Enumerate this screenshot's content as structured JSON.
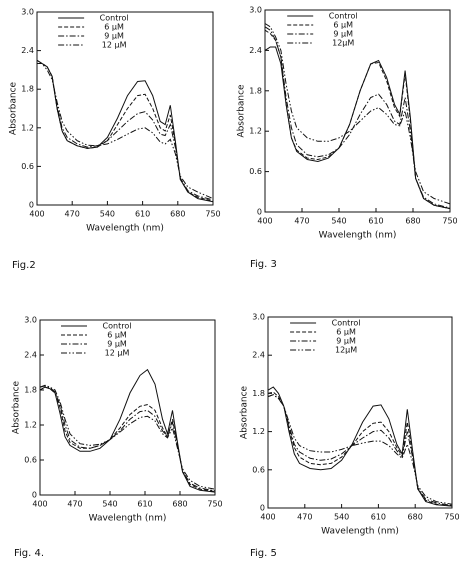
{
  "chart_data": [
    {
      "type": "line",
      "caption": "Fig.2",
      "xlabel": "Wavelength (nm)",
      "ylabel": "Absorbance",
      "x": [
        400,
        410,
        420,
        430,
        440,
        450,
        460,
        480,
        500,
        520,
        540,
        560,
        580,
        600,
        615,
        630,
        645,
        655,
        665,
        675,
        685,
        700,
        720,
        750
      ],
      "xlim": [
        400,
        750
      ],
      "ylim": [
        0,
        3
      ],
      "xticks": [
        400,
        470,
        540,
        610,
        680,
        750
      ],
      "yticks": [
        0,
        0.6,
        1.2,
        1.8,
        2.4,
        {
          "value": 3,
          "label": "3.0"
        }
      ],
      "series": [
        {
          "name": "Control",
          "color": "#111",
          "dash": "solid",
          "values": [
            2.2,
            2.2,
            2.15,
            2.0,
            1.5,
            1.15,
            1.0,
            0.92,
            0.88,
            0.9,
            1.05,
            1.35,
            1.7,
            1.92,
            1.93,
            1.7,
            1.3,
            1.25,
            1.55,
            1.0,
            0.4,
            0.2,
            0.1,
            0.05
          ]
        },
        {
          "name": "6 μM",
          "color": "#111",
          "dash": "dashed",
          "values": [
            2.2,
            2.2,
            2.15,
            2.0,
            1.5,
            1.15,
            1.0,
            0.92,
            0.88,
            0.9,
            1.0,
            1.25,
            1.5,
            1.7,
            1.72,
            1.5,
            1.2,
            1.15,
            1.4,
            0.95,
            0.4,
            0.2,
            0.12,
            0.06
          ]
        },
        {
          "name": "9 μM",
          "color": "#111",
          "dash": "dashdot",
          "values": [
            2.25,
            2.2,
            2.15,
            2.0,
            1.55,
            1.2,
            1.05,
            0.95,
            0.9,
            0.92,
            1.0,
            1.15,
            1.3,
            1.42,
            1.45,
            1.32,
            1.1,
            1.08,
            1.25,
            0.9,
            0.42,
            0.22,
            0.14,
            0.08
          ]
        },
        {
          "name": "12 μM",
          "color": "#111",
          "dash": "dashdotdot",
          "values": [
            2.25,
            2.2,
            2.1,
            1.95,
            1.6,
            1.3,
            1.15,
            1.0,
            0.93,
            0.92,
            0.95,
            1.02,
            1.1,
            1.18,
            1.2,
            1.12,
            0.98,
            0.95,
            1.02,
            0.8,
            0.45,
            0.28,
            0.2,
            0.1
          ]
        }
      ]
    },
    {
      "type": "line",
      "caption": "Fig. 3",
      "xlabel": "Wavelength (nm)",
      "ylabel": "Absorbance",
      "x": [
        400,
        410,
        420,
        430,
        440,
        450,
        460,
        480,
        500,
        520,
        540,
        560,
        580,
        600,
        615,
        630,
        645,
        655,
        665,
        675,
        685,
        700,
        720,
        750
      ],
      "xlim": [
        400,
        750
      ],
      "ylim": [
        0,
        3
      ],
      "xticks": [
        400,
        470,
        540,
        610,
        680,
        750
      ],
      "yticks": [
        0,
        0.6,
        1.2,
        1.8,
        2.4,
        {
          "value": 3,
          "label": "3.0"
        }
      ],
      "series": [
        {
          "name": "Control",
          "color": "#111",
          "dash": "solid",
          "values": [
            2.4,
            2.45,
            2.45,
            2.2,
            1.6,
            1.1,
            0.9,
            0.78,
            0.75,
            0.8,
            0.95,
            1.3,
            1.8,
            2.2,
            2.25,
            2.0,
            1.6,
            1.45,
            2.1,
            1.4,
            0.5,
            0.2,
            0.1,
            0.05
          ]
        },
        {
          "name": "6 μM",
          "color": "#111",
          "dash": "dashed",
          "values": [
            2.7,
            2.65,
            2.55,
            2.3,
            1.6,
            1.1,
            0.92,
            0.8,
            0.78,
            0.82,
            0.95,
            1.3,
            1.8,
            2.2,
            2.22,
            1.95,
            1.55,
            1.42,
            2.05,
            1.35,
            0.5,
            0.2,
            0.1,
            0.05
          ]
        },
        {
          "name": "9 μM",
          "color": "#111",
          "dash": "dashdot",
          "values": [
            2.75,
            2.7,
            2.55,
            2.3,
            1.7,
            1.25,
            1.0,
            0.85,
            0.82,
            0.85,
            0.95,
            1.15,
            1.45,
            1.7,
            1.75,
            1.6,
            1.35,
            1.3,
            1.7,
            1.2,
            0.5,
            0.22,
            0.12,
            0.06
          ]
        },
        {
          "name": "12μM",
          "color": "#111",
          "dash": "dashdotdot",
          "values": [
            2.8,
            2.75,
            2.6,
            2.4,
            1.9,
            1.5,
            1.25,
            1.1,
            1.05,
            1.05,
            1.1,
            1.2,
            1.35,
            1.5,
            1.55,
            1.45,
            1.3,
            1.28,
            1.5,
            1.1,
            0.6,
            0.3,
            0.2,
            0.12
          ]
        }
      ]
    },
    {
      "type": "line",
      "caption": "Fig. 4.",
      "xlabel": "Wavelength (nm)",
      "ylabel": "Absorbance",
      "x": [
        400,
        410,
        420,
        430,
        440,
        450,
        460,
        480,
        500,
        520,
        540,
        560,
        580,
        600,
        615,
        630,
        645,
        655,
        665,
        675,
        685,
        700,
        720,
        750
      ],
      "xlim": [
        400,
        750
      ],
      "ylim": [
        0,
        3
      ],
      "xticks": [
        400,
        470,
        540,
        610,
        680,
        750
      ],
      "yticks": [
        0,
        0.6,
        1.2,
        1.8,
        2.4,
        {
          "value": 3,
          "label": "3.0"
        }
      ],
      "series": [
        {
          "name": "Control",
          "color": "#111",
          "dash": "solid",
          "values": [
            1.8,
            1.85,
            1.82,
            1.75,
            1.4,
            1.0,
            0.85,
            0.75,
            0.75,
            0.8,
            0.95,
            1.3,
            1.75,
            2.05,
            2.15,
            1.9,
            1.3,
            1.05,
            1.45,
            0.9,
            0.4,
            0.15,
            0.08,
            0.05
          ]
        },
        {
          "name": "6 μM",
          "color": "#111",
          "dash": "dashed",
          "values": [
            1.8,
            1.85,
            1.82,
            1.75,
            1.5,
            1.1,
            0.9,
            0.8,
            0.8,
            0.85,
            0.95,
            1.15,
            1.38,
            1.52,
            1.55,
            1.45,
            1.15,
            1.0,
            1.3,
            0.85,
            0.4,
            0.18,
            0.1,
            0.06
          ]
        },
        {
          "name": "9 μM",
          "color": "#111",
          "dash": "dashdot",
          "values": [
            1.85,
            1.87,
            1.84,
            1.77,
            1.55,
            1.2,
            0.95,
            0.82,
            0.8,
            0.85,
            0.95,
            1.1,
            1.3,
            1.43,
            1.45,
            1.35,
            1.1,
            1.0,
            1.25,
            0.85,
            0.42,
            0.2,
            0.12,
            0.07
          ]
        },
        {
          "name": "12 μM",
          "color": "#111",
          "dash": "dashdotdot",
          "values": [
            1.85,
            1.88,
            1.85,
            1.8,
            1.6,
            1.3,
            1.05,
            0.88,
            0.85,
            0.87,
            0.95,
            1.08,
            1.22,
            1.33,
            1.35,
            1.27,
            1.05,
            0.98,
            1.15,
            0.8,
            0.45,
            0.25,
            0.15,
            0.1
          ]
        }
      ]
    },
    {
      "type": "line",
      "caption": "Fig. 5",
      "xlabel": "Wavelength (nm)",
      "ylabel": "Absorbance",
      "x": [
        400,
        410,
        420,
        430,
        440,
        450,
        460,
        480,
        500,
        520,
        540,
        560,
        580,
        600,
        615,
        630,
        645,
        655,
        665,
        675,
        685,
        700,
        720,
        750
      ],
      "xlim": [
        400,
        750
      ],
      "ylim": [
        0,
        3
      ],
      "xticks": [
        400,
        470,
        540,
        610,
        680,
        750
      ],
      "yticks": [
        0,
        0.6,
        1.2,
        1.8,
        2.4,
        {
          "value": 3,
          "label": "3.0"
        }
      ],
      "series": [
        {
          "name": "Control",
          "color": "#111",
          "dash": "solid",
          "values": [
            1.85,
            1.9,
            1.8,
            1.6,
            1.2,
            0.85,
            0.7,
            0.62,
            0.6,
            0.62,
            0.75,
            1.0,
            1.35,
            1.6,
            1.62,
            1.4,
            1.0,
            0.85,
            1.55,
            0.9,
            0.3,
            0.1,
            0.05,
            0.03
          ]
        },
        {
          "name": "6 μM",
          "color": "#111",
          "dash": "dashed",
          "values": [
            1.8,
            1.82,
            1.75,
            1.6,
            1.25,
            0.95,
            0.8,
            0.7,
            0.68,
            0.7,
            0.8,
            0.98,
            1.2,
            1.33,
            1.35,
            1.2,
            0.95,
            0.82,
            1.35,
            0.85,
            0.3,
            0.12,
            0.06,
            0.03
          ]
        },
        {
          "name": "9 μM",
          "color": "#111",
          "dash": "dashdot",
          "values": [
            1.75,
            1.78,
            1.72,
            1.6,
            1.3,
            1.0,
            0.88,
            0.78,
            0.75,
            0.77,
            0.85,
            0.98,
            1.1,
            1.2,
            1.22,
            1.1,
            0.9,
            0.8,
            1.2,
            0.8,
            0.32,
            0.14,
            0.08,
            0.04
          ]
        },
        {
          "name": "12μM",
          "color": "#111",
          "dash": "dashdotdot",
          "values": [
            1.75,
            1.78,
            1.72,
            1.6,
            1.35,
            1.1,
            0.98,
            0.9,
            0.88,
            0.88,
            0.92,
            0.98,
            1.02,
            1.05,
            1.05,
            0.98,
            0.85,
            0.78,
            1.0,
            0.72,
            0.35,
            0.18,
            0.1,
            0.06
          ]
        }
      ]
    }
  ]
}
